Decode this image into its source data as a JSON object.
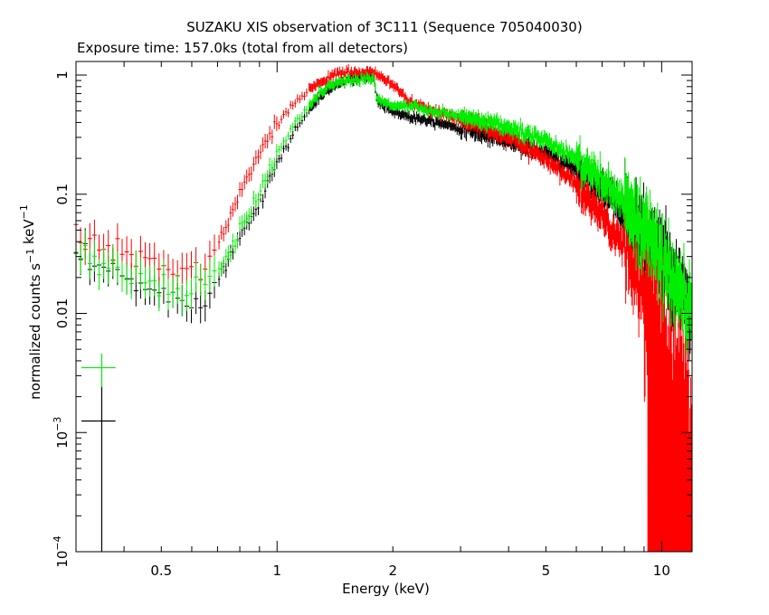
{
  "chart_data": {
    "type": "scatter",
    "title": "SUZAKU XIS observation of 3C111 (Sequence 705040030)",
    "subtitle": "Exposure time: 157.0ks (total from all detectors)",
    "xlabel": "Energy (keV)",
    "ylabel": "normalized counts s^-1 keV^-1",
    "xscale": "log",
    "yscale": "log",
    "xlim": [
      0.3,
      12
    ],
    "ylim": [
      0.0001,
      1.3
    ],
    "grid": false,
    "legend": "none",
    "x_ticks": [
      {
        "value": 0.5,
        "label": "0.5"
      },
      {
        "value": 1,
        "label": "1"
      },
      {
        "value": 2,
        "label": "2"
      },
      {
        "value": 5,
        "label": "5"
      },
      {
        "value": 10,
        "label": "10"
      }
    ],
    "y_ticks": [
      {
        "value": 1,
        "label": "1",
        "exp": ""
      },
      {
        "value": 0.1,
        "label": "0.1",
        "exp": ""
      },
      {
        "value": 0.01,
        "label": "0.01",
        "exp": ""
      },
      {
        "value": 0.001,
        "label": "10",
        "exp": "−3"
      },
      {
        "value": 0.0001,
        "label": "10",
        "exp": "−4"
      }
    ],
    "series": [
      {
        "color": "#000000",
        "shape": [
          [
            0.3,
            0.028
          ],
          [
            0.4,
            0.02
          ],
          [
            0.5,
            0.014
          ],
          [
            0.6,
            0.013
          ],
          [
            0.66,
            0.016
          ],
          [
            0.72,
            0.022
          ],
          [
            0.8,
            0.045
          ],
          [
            0.9,
            0.09
          ],
          [
            1.0,
            0.18
          ],
          [
            1.1,
            0.32
          ],
          [
            1.2,
            0.5
          ],
          [
            1.35,
            0.75
          ],
          [
            1.5,
            0.9
          ],
          [
            1.65,
            0.95
          ],
          [
            1.78,
            0.98
          ],
          [
            1.82,
            0.6
          ],
          [
            2.0,
            0.5
          ],
          [
            2.2,
            0.45
          ],
          [
            2.5,
            0.42
          ],
          [
            3.0,
            0.36
          ],
          [
            4.0,
            0.28
          ],
          [
            5.0,
            0.22
          ],
          [
            6.0,
            0.16
          ],
          [
            7.0,
            0.11
          ],
          [
            8.0,
            0.07
          ],
          [
            9.0,
            0.045
          ],
          [
            10.0,
            0.028
          ],
          [
            11.0,
            0.015
          ],
          [
            12.0,
            0.009
          ]
        ]
      },
      {
        "color": "#ff0000",
        "shape": [
          [
            0.3,
            0.045
          ],
          [
            0.4,
            0.03
          ],
          [
            0.5,
            0.025
          ],
          [
            0.6,
            0.022
          ],
          [
            0.66,
            0.026
          ],
          [
            0.72,
            0.045
          ],
          [
            0.8,
            0.1
          ],
          [
            0.9,
            0.22
          ],
          [
            1.0,
            0.38
          ],
          [
            1.1,
            0.55
          ],
          [
            1.2,
            0.75
          ],
          [
            1.35,
            0.95
          ],
          [
            1.5,
            1.05
          ],
          [
            1.65,
            1.05
          ],
          [
            1.78,
            1.05
          ],
          [
            1.85,
            0.95
          ],
          [
            2.0,
            0.85
          ],
          [
            2.2,
            0.6
          ],
          [
            2.5,
            0.5
          ],
          [
            3.0,
            0.43
          ],
          [
            4.0,
            0.3
          ],
          [
            5.0,
            0.2
          ],
          [
            6.0,
            0.12
          ],
          [
            7.0,
            0.065
          ],
          [
            8.0,
            0.035
          ],
          [
            9.0,
            0.015
          ],
          [
            10.0,
            0.005
          ],
          [
            11.0,
            0.002
          ],
          [
            12.0,
            0.001
          ]
        ]
      },
      {
        "color": "#00ee00",
        "shape": [
          [
            0.3,
            0.032
          ],
          [
            0.4,
            0.024
          ],
          [
            0.5,
            0.016
          ],
          [
            0.6,
            0.015
          ],
          [
            0.66,
            0.018
          ],
          [
            0.72,
            0.025
          ],
          [
            0.8,
            0.05
          ],
          [
            0.9,
            0.1
          ],
          [
            1.0,
            0.22
          ],
          [
            1.1,
            0.38
          ],
          [
            1.2,
            0.55
          ],
          [
            1.35,
            0.8
          ],
          [
            1.5,
            0.9
          ],
          [
            1.65,
            0.92
          ],
          [
            1.78,
            0.95
          ],
          [
            1.82,
            0.65
          ],
          [
            2.0,
            0.55
          ],
          [
            2.2,
            0.55
          ],
          [
            2.5,
            0.5
          ],
          [
            3.0,
            0.45
          ],
          [
            4.0,
            0.36
          ],
          [
            5.0,
            0.28
          ],
          [
            6.0,
            0.2
          ],
          [
            7.0,
            0.13
          ],
          [
            8.0,
            0.08
          ],
          [
            9.0,
            0.05
          ],
          [
            10.0,
            0.03
          ],
          [
            11.0,
            0.016
          ],
          [
            12.0,
            0.01
          ]
        ]
      }
    ],
    "background_points": [
      {
        "color": "#000000",
        "x": 0.35,
        "y": 0.00125,
        "x_err": [
          0.31,
          0.38
        ],
        "y_err": [
          0.0001,
          0.0025
        ]
      },
      {
        "color": "#00ee00",
        "x": 0.35,
        "y": 0.0035,
        "x_err": [
          0.31,
          0.38
        ],
        "y_err": [
          0.0024,
          0.0046
        ]
      }
    ]
  }
}
